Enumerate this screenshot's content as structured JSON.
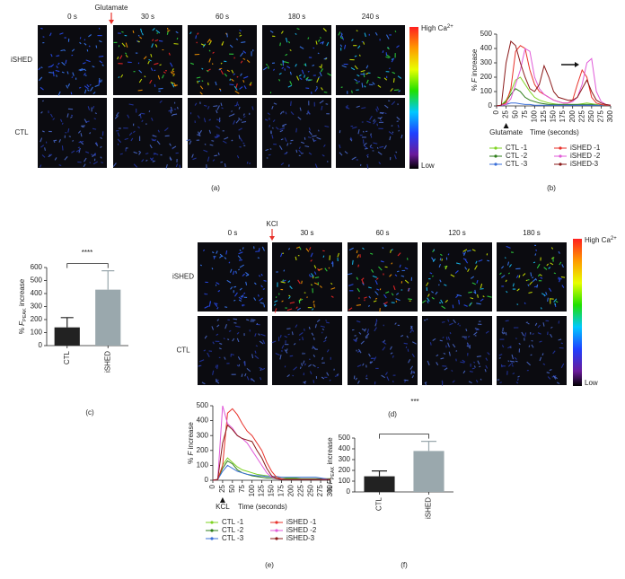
{
  "figure": {
    "a": {
      "times": [
        "0 s",
        "30 s",
        "60 s",
        "180 s",
        "240 s"
      ],
      "stimulus": "Glutamate",
      "rows": [
        "iSHED",
        "CTL"
      ],
      "colorbar": {
        "high": "High Ca",
        "sup": "2+",
        "low": "Low"
      },
      "label": "(a)"
    },
    "d": {
      "times": [
        "0 s",
        "30 s",
        "60 s",
        "120 s",
        "180 s"
      ],
      "stimulus": "KCl",
      "rows": [
        "iSHED",
        "CTL"
      ],
      "colorbar": {
        "high": "High Ca",
        "sup": "2+",
        "low": "Low"
      },
      "label": "(d)"
    }
  },
  "chart_data": [
    {
      "type": "line",
      "panel": "(b)",
      "ylabel": {
        "pre": "% ",
        "var": "F",
        "post": " increase"
      },
      "xlabel": "Time (seconds)",
      "annotation": "Glutamate",
      "annotation_x": 25,
      "xlim": [
        0,
        300
      ],
      "xticks": [
        0,
        25,
        50,
        75,
        100,
        125,
        150,
        175,
        200,
        225,
        250,
        275,
        300
      ],
      "ylim": [
        0,
        500
      ],
      "yticks": [
        0,
        100,
        200,
        300,
        400,
        500
      ],
      "x": [
        0,
        12.5,
        25,
        37.5,
        50,
        62.5,
        75,
        87.5,
        100,
        112.5,
        125,
        137.5,
        150,
        162.5,
        175,
        187.5,
        200,
        212.5,
        225,
        237.5,
        250,
        262.5,
        275,
        287.5,
        300
      ],
      "series": [
        {
          "name": "CTL -1",
          "color": "#7ed321",
          "values": [
            0,
            5,
            40,
            100,
            180,
            200,
            150,
            100,
            60,
            40,
            30,
            20,
            15,
            10,
            10,
            10,
            10,
            10,
            15,
            20,
            15,
            10,
            5,
            5,
            5
          ]
        },
        {
          "name": "CTL -2",
          "color": "#2e7d1a",
          "values": [
            0,
            5,
            30,
            80,
            120,
            100,
            60,
            40,
            30,
            20,
            15,
            10,
            10,
            10,
            10,
            10,
            10,
            10,
            10,
            10,
            10,
            5,
            5,
            5,
            5
          ]
        },
        {
          "name": "CTL -3",
          "color": "#3a6fd8",
          "values": [
            0,
            2,
            10,
            20,
            20,
            15,
            10,
            10,
            5,
            5,
            5,
            5,
            5,
            5,
            5,
            5,
            5,
            5,
            5,
            5,
            5,
            5,
            5,
            5,
            5
          ]
        },
        {
          "name": "iSHED -1",
          "color": "#e8312a",
          "values": [
            0,
            5,
            20,
            120,
            380,
            420,
            400,
            250,
            150,
            100,
            80,
            60,
            40,
            30,
            20,
            20,
            40,
            150,
            250,
            200,
            60,
            20,
            10,
            5,
            5
          ]
        },
        {
          "name": "iSHED -2",
          "color": "#e05ad8",
          "values": [
            0,
            5,
            10,
            50,
            150,
            250,
            400,
            380,
            200,
            120,
            80,
            60,
            40,
            30,
            20,
            20,
            30,
            60,
            150,
            300,
            330,
            100,
            30,
            10,
            5
          ]
        },
        {
          "name": "iSHED-3",
          "color": "#8b1a1a",
          "values": [
            0,
            5,
            300,
            450,
            420,
            300,
            200,
            120,
            100,
            150,
            280,
            200,
            100,
            60,
            50,
            40,
            40,
            60,
            120,
            180,
            100,
            40,
            20,
            10,
            5
          ]
        }
      ]
    },
    {
      "type": "bar",
      "panel": "(c)",
      "ylabel": {
        "pre": "% ",
        "var": "F",
        "sub": "PEAK",
        "post": " increase"
      },
      "categories": [
        "CTL",
        "iSHED"
      ],
      "values": [
        140,
        430
      ],
      "errors": [
        75,
        145
      ],
      "colors": [
        "#222222",
        "#9aa8ad"
      ],
      "ylim": [
        0,
        600
      ],
      "yticks": [
        0,
        100,
        200,
        300,
        400,
        500,
        600
      ],
      "significance": "****"
    },
    {
      "type": "line",
      "panel": "(e)",
      "ylabel": {
        "pre": "% ",
        "var": "F",
        "post": " increase"
      },
      "xlabel": "Time (seconds)",
      "annotation": "KCL",
      "annotation_x": 25,
      "xlim": [
        0,
        300
      ],
      "xticks": [
        0,
        25,
        50,
        75,
        100,
        125,
        150,
        175,
        200,
        225,
        250,
        275,
        300
      ],
      "ylim": [
        0,
        500
      ],
      "yticks": [
        0,
        100,
        200,
        300,
        400,
        500
      ],
      "x": [
        0,
        12.5,
        25,
        37.5,
        50,
        62.5,
        75,
        87.5,
        100,
        112.5,
        125,
        137.5,
        150,
        162.5,
        175,
        187.5,
        200,
        212.5,
        225,
        237.5,
        250,
        262.5,
        275,
        287.5,
        300
      ],
      "series": [
        {
          "name": "CTL -1",
          "color": "#7ed321",
          "values": [
            0,
            5,
            100,
            150,
            120,
            90,
            70,
            60,
            50,
            40,
            35,
            30,
            25,
            20,
            20,
            15,
            15,
            15,
            10,
            10,
            10,
            10,
            10,
            10,
            10
          ]
        },
        {
          "name": "CTL -2",
          "color": "#2e7d1a",
          "values": [
            0,
            5,
            80,
            130,
            110,
            70,
            50,
            40,
            30,
            25,
            20,
            15,
            15,
            10,
            10,
            10,
            10,
            10,
            10,
            10,
            10,
            10,
            10,
            10,
            10
          ]
        },
        {
          "name": "CTL -3",
          "color": "#3a6fd8",
          "values": [
            0,
            5,
            60,
            100,
            80,
            60,
            50,
            40,
            35,
            30,
            30,
            25,
            25,
            25,
            20,
            20,
            20,
            20,
            20,
            20,
            20,
            20,
            15,
            10,
            5
          ]
        },
        {
          "name": "iSHED -1",
          "color": "#e8312a",
          "values": [
            0,
            5,
            100,
            450,
            480,
            440,
            380,
            330,
            300,
            250,
            200,
            120,
            60,
            20,
            10,
            5,
            5,
            5,
            5,
            5,
            5,
            5,
            5,
            5,
            5
          ]
        },
        {
          "name": "iSHED -2",
          "color": "#e05ad8",
          "values": [
            0,
            5,
            500,
            380,
            350,
            300,
            280,
            250,
            200,
            150,
            100,
            50,
            20,
            10,
            5,
            5,
            5,
            5,
            5,
            5,
            5,
            5,
            5,
            5,
            5
          ]
        },
        {
          "name": "iSHED-3",
          "color": "#8b1a1a",
          "values": [
            0,
            5,
            250,
            370,
            340,
            300,
            280,
            270,
            260,
            200,
            150,
            80,
            30,
            10,
            5,
            5,
            5,
            5,
            5,
            5,
            5,
            5,
            5,
            5,
            5
          ]
        }
      ]
    },
    {
      "type": "bar",
      "panel": "(f)",
      "ylabel": {
        "pre": "% ",
        "var": "F",
        "sub": "PEAK",
        "post": " increase"
      },
      "categories": [
        "CTL",
        "iSHED"
      ],
      "values": [
        145,
        380
      ],
      "errors": [
        50,
        90
      ],
      "colors": [
        "#222222",
        "#9aa8ad"
      ],
      "ylim": [
        0,
        500
      ],
      "yticks": [
        0,
        100,
        200,
        300,
        400,
        500
      ],
      "significance": "***"
    }
  ]
}
